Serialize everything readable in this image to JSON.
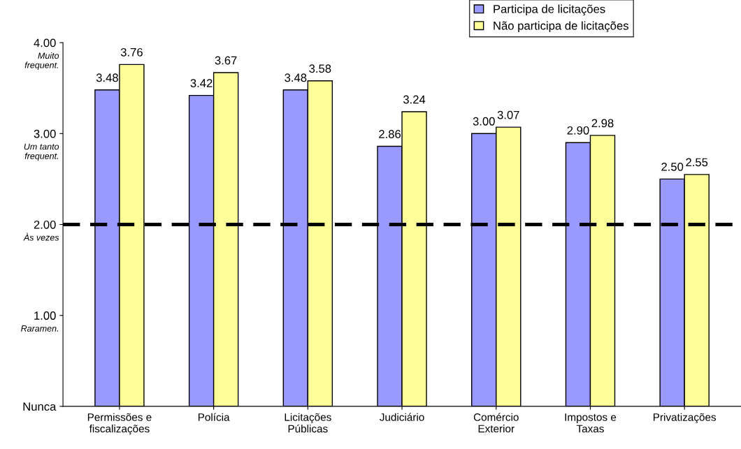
{
  "chart_data": {
    "type": "bar",
    "categories": [
      "Permissões e\nfiscalizações",
      "Polícia",
      "Licitações\nPúblicas",
      "Judiciário",
      "Comércio\nExterior",
      "Impostos e\nTaxas",
      "Privatizações"
    ],
    "series": [
      {
        "name": "Participa de licitações",
        "color": "#9999ff",
        "values": [
          3.48,
          3.42,
          3.48,
          2.86,
          3.0,
          2.9,
          2.5
        ],
        "value_labels": [
          "3.48",
          "3.42",
          "3.48",
          "2.86",
          "3.00",
          "2.90",
          "2.50"
        ]
      },
      {
        "name": "Não participa de licitações",
        "color": "#ffff99",
        "values": [
          3.76,
          3.67,
          3.58,
          3.24,
          3.07,
          2.98,
          2.55
        ],
        "value_labels": [
          "3.76",
          "3.67",
          "3.58",
          "3.24",
          "3.07",
          "2.98",
          "2.55"
        ]
      }
    ],
    "ylim": [
      0,
      4
    ],
    "yticks": [
      {
        "value": 0,
        "label": "Nunca"
      },
      {
        "value": 1,
        "label": "1.00"
      },
      {
        "value": 2,
        "label": "2.00"
      },
      {
        "value": 3,
        "label": "3.00"
      },
      {
        "value": 4,
        "label": "4.00"
      }
    ],
    "annotations": [
      "Raramen.",
      "Às vezes",
      "Um tanto\nfrequent.",
      "Muito\nfrequent."
    ],
    "ref_lines": [
      {
        "axis": "y",
        "value": 2,
        "color": "#000000",
        "line_style": "dashed"
      }
    ],
    "legend": "top right",
    "grid": false
  }
}
